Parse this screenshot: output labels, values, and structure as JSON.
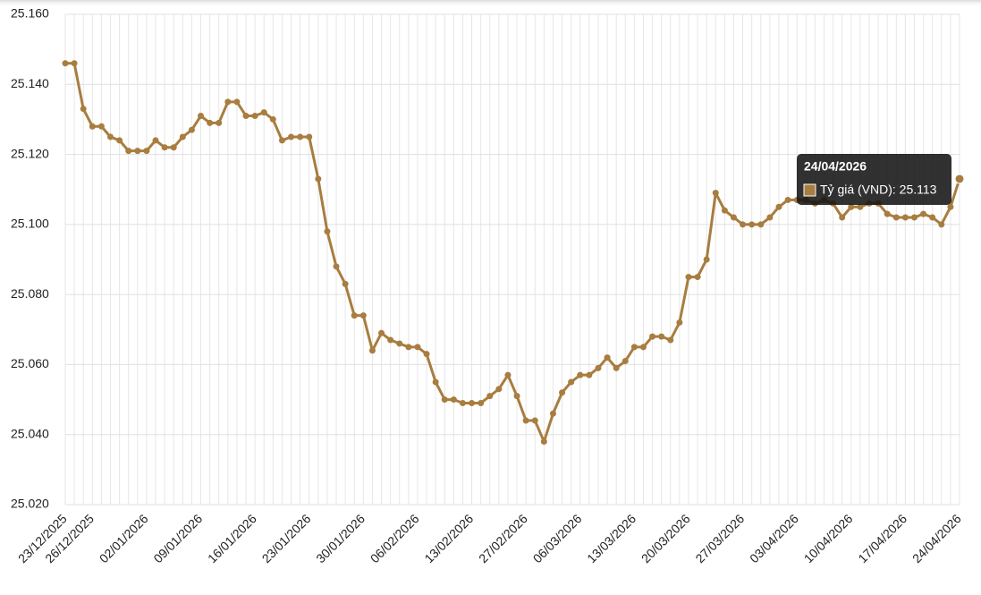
{
  "chart_data": {
    "type": "line",
    "categories": [
      "23/12/2025",
      null,
      null,
      "26/12/2025",
      null,
      null,
      null,
      null,
      null,
      "02/01/2026",
      null,
      null,
      null,
      null,
      null,
      "09/01/2026",
      null,
      null,
      null,
      null,
      null,
      "16/01/2026",
      null,
      null,
      null,
      null,
      null,
      "23/01/2026",
      null,
      null,
      null,
      null,
      null,
      "30/01/2026",
      null,
      null,
      null,
      null,
      null,
      "06/02/2026",
      null,
      null,
      null,
      null,
      null,
      "13/02/2026",
      null,
      null,
      null,
      null,
      null,
      "27/02/2026",
      null,
      null,
      null,
      null,
      null,
      "06/03/2026",
      null,
      null,
      null,
      null,
      null,
      "13/03/2026",
      null,
      null,
      null,
      null,
      null,
      "20/03/2026",
      null,
      null,
      null,
      null,
      null,
      "27/03/2026",
      null,
      null,
      null,
      null,
      null,
      "03/04/2026",
      null,
      null,
      null,
      null,
      null,
      "10/04/2026",
      null,
      null,
      null,
      null,
      null,
      "17/04/2026",
      null,
      null,
      null,
      null,
      null,
      "24/04/2026"
    ],
    "values": [
      25146,
      25146,
      25133,
      25128,
      25128,
      25125,
      25124,
      25121,
      25121,
      25121,
      25124,
      25122,
      25122,
      25125,
      25127,
      25131,
      25129,
      25129,
      25135,
      25135,
      25131,
      25131,
      25132,
      25130,
      25124,
      25125,
      25125,
      25125,
      25113,
      25098,
      25088,
      25083,
      25074,
      25074,
      25064,
      25069,
      25067,
      25066,
      25065,
      25065,
      25063,
      25055,
      25050,
      25050,
      25049,
      25049,
      25049,
      25051,
      25053,
      25057,
      25051,
      25044,
      25044,
      25038,
      25046,
      25052,
      25055,
      25057,
      25057,
      25059,
      25062,
      25059,
      25061,
      25065,
      25065,
      25068,
      25068,
      25067,
      25072,
      25085,
      25085,
      25090,
      25109,
      25104,
      25102,
      25100,
      25100,
      25100,
      25102,
      25105,
      25107,
      25107,
      25107,
      25106,
      25107,
      25106,
      25102,
      25105,
      25105,
      25106,
      25106,
      25103,
      25102,
      25102,
      25102,
      25103,
      25102,
      25100,
      25105,
      25113
    ],
    "color": "#a87d40",
    "ylim": [
      25020,
      25160
    ],
    "yticks": [
      {
        "value": 25020,
        "label": "25.020"
      },
      {
        "value": 25040,
        "label": "25.040"
      },
      {
        "value": 25060,
        "label": "25.060"
      },
      {
        "value": 25080,
        "label": "25.080"
      },
      {
        "value": 25100,
        "label": "25.100"
      },
      {
        "value": 25120,
        "label": "25.120"
      },
      {
        "value": 25140,
        "label": "25.140"
      },
      {
        "value": 25160,
        "label": "25.160"
      }
    ],
    "grid": true,
    "tooltip": {
      "index": 99,
      "title": "24/04/2026",
      "text": "Tỷ giá (VND): 25.113"
    }
  }
}
